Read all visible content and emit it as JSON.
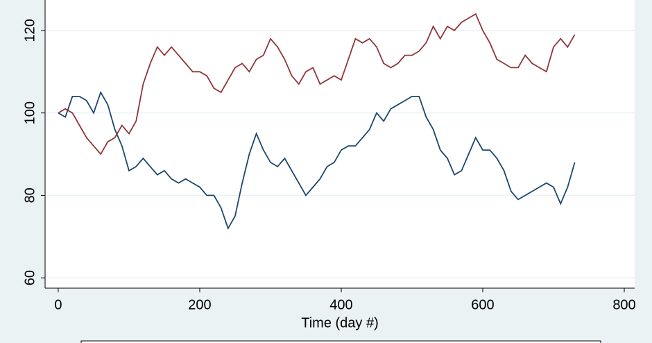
{
  "chart_data": {
    "type": "line",
    "x_label": "Time (day #)",
    "x": [
      0,
      10,
      20,
      30,
      40,
      50,
      60,
      70,
      80,
      90,
      100,
      110,
      120,
      130,
      140,
      150,
      160,
      170,
      180,
      190,
      200,
      210,
      220,
      230,
      240,
      250,
      260,
      270,
      280,
      290,
      300,
      310,
      320,
      330,
      340,
      350,
      360,
      370,
      380,
      390,
      400,
      410,
      420,
      430,
      440,
      450,
      460,
      470,
      480,
      490,
      500,
      510,
      520,
      530,
      540,
      550,
      560,
      570,
      580,
      590,
      600,
      610,
      620,
      630,
      640,
      650,
      660,
      670,
      680,
      690,
      700,
      710,
      720,
      730
    ],
    "series": [
      {
        "color": "#1a476f",
        "values": [
          100,
          99,
          104,
          104,
          103,
          100,
          105,
          102,
          96,
          92,
          86,
          87,
          89,
          87,
          85,
          86,
          84,
          83,
          84,
          83,
          82,
          80,
          80,
          77,
          72,
          75,
          83,
          90,
          95,
          91,
          88,
          87,
          89,
          86,
          83,
          80,
          82,
          84,
          87,
          88,
          91,
          92,
          92,
          94,
          96,
          100,
          98,
          101,
          102,
          103,
          104,
          104,
          99,
          96,
          91,
          89,
          85,
          86,
          90,
          94,
          91,
          91,
          89,
          86,
          81,
          79,
          80,
          81,
          82,
          83,
          82,
          78,
          82,
          88
        ]
      },
      {
        "color": "#90353b",
        "values": [
          100,
          101,
          100,
          97,
          94,
          92,
          90,
          93,
          94,
          97,
          95,
          98,
          107,
          112,
          116,
          114,
          116,
          114,
          112,
          110,
          110,
          109,
          106,
          105,
          108,
          111,
          112,
          110,
          113,
          114,
          118,
          116,
          113,
          109,
          107,
          110,
          111,
          107,
          108,
          109,
          108,
          113,
          118,
          117,
          118,
          116,
          112,
          111,
          112,
          114,
          114,
          115,
          117,
          121,
          118,
          121,
          120,
          122,
          123,
          124,
          120,
          117,
          113,
          112,
          111,
          111,
          114,
          112,
          111,
          110,
          116,
          118,
          116,
          119
        ]
      }
    ],
    "xlim": [
      -18.6,
      814.7
    ],
    "ylim": [
      57.5,
      127.4
    ],
    "xticks": [
      0,
      200,
      400,
      600,
      800
    ],
    "yticks": [
      60,
      80,
      100,
      120
    ],
    "grid": true
  }
}
